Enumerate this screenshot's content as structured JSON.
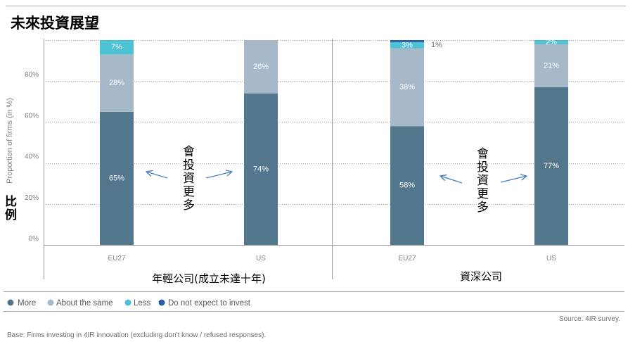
{
  "chart_data": {
    "type": "bar",
    "stacked": true,
    "title": "未來投資展望",
    "ylabel": "Proportion of firms (in %)",
    "ylabel_note": "比例",
    "ylim": [
      0,
      100
    ],
    "yticks": [
      0,
      20,
      40,
      60,
      80
    ],
    "ytick_labels": [
      "0%",
      "20%",
      "40%",
      "60%",
      "80%"
    ],
    "grid": true,
    "legend": "bottom-left",
    "categories": [
      "EU27",
      "US",
      "EU27",
      "US"
    ],
    "groups": [
      {
        "label": "年輕公司(成立未達十年)",
        "categories": [
          0,
          1
        ],
        "annotation": "會投資更多"
      },
      {
        "label": "資深公司",
        "categories": [
          2,
          3
        ],
        "annotation": "會投資更多"
      }
    ],
    "series": [
      {
        "name": "More",
        "color": "#52768C",
        "values": [
          65,
          74,
          58,
          77
        ],
        "labels": [
          "65%",
          "74%",
          "58%",
          "77%"
        ]
      },
      {
        "name": "About the same",
        "color": "#A7B9C9",
        "values": [
          28,
          26,
          38,
          21
        ],
        "labels": [
          "28%",
          "26%",
          "38%",
          "21%"
        ]
      },
      {
        "name": "Less",
        "color": "#4DC1D5",
        "values": [
          7,
          0,
          3,
          2
        ],
        "labels": [
          "7%",
          "",
          "3%",
          "2%"
        ]
      },
      {
        "name": "Do not expect to invest",
        "color": "#2B5EA7",
        "values": [
          0,
          0,
          1,
          0
        ],
        "labels": [
          "",
          "",
          "1%",
          ""
        ]
      }
    ]
  },
  "footer": {
    "source": "Source: 4IR survey.",
    "base": "Base: Firms investing in 4IR innovation (excluding don't know / refused responses)."
  }
}
